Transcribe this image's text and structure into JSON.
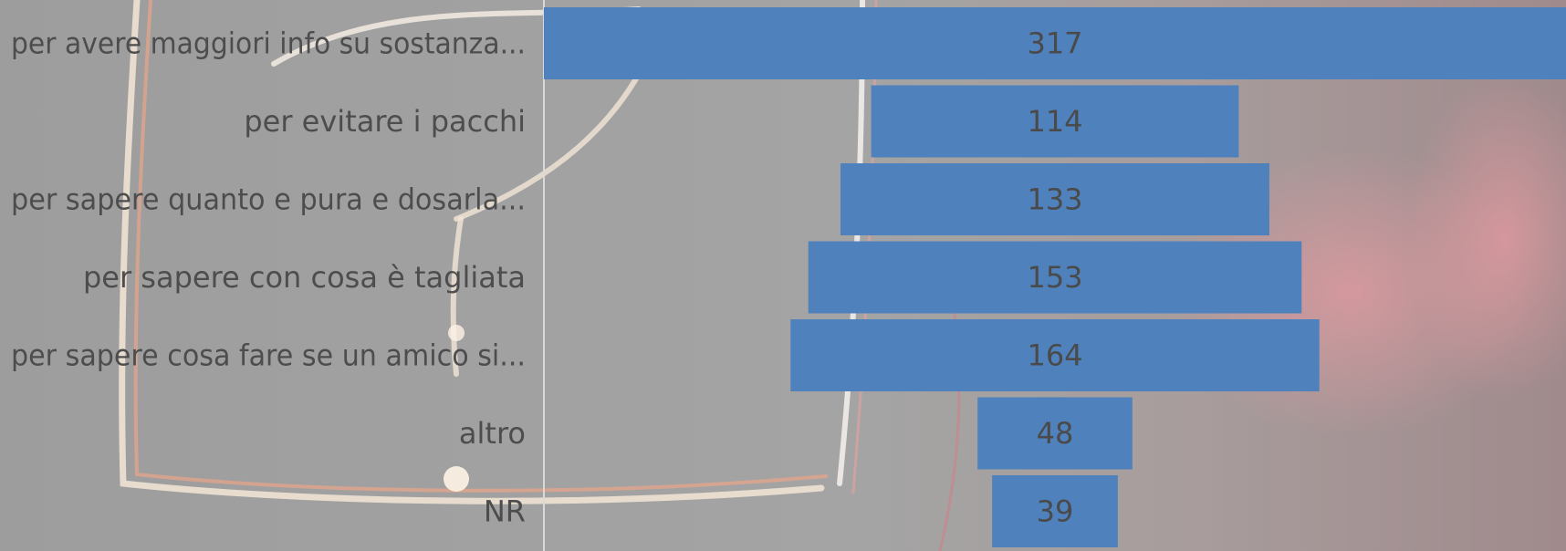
{
  "colors": {
    "background": "#9a9a9a",
    "bar": "#4f81bd",
    "axis_line": "#d9d9d9",
    "label_text": "#4d4d4d"
  },
  "chart_data": {
    "type": "bar",
    "orientation": "horizontal",
    "style": "funnel-centered",
    "title": "",
    "xlabel": "",
    "ylabel": "",
    "categories": [
      "per avere maggiori info su sostanza...",
      "per evitare i pacchi",
      "per sapere quanto e pura e dosarla...",
      "per sapere con cosa è tagliata",
      "per sapere cosa fare se un amico si...",
      "altro",
      "NR"
    ],
    "values": [
      317,
      114,
      133,
      153,
      164,
      48,
      39
    ],
    "xlim": [
      0,
      317
    ],
    "grid": false,
    "legend": "none",
    "data_labels": true
  }
}
